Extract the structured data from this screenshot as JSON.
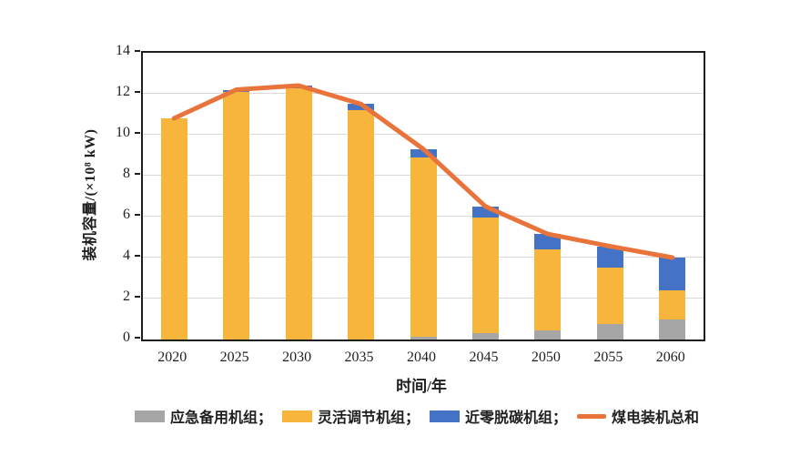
{
  "colors": {
    "emergency": "#a6a6a6",
    "flexible": "#f7b53c",
    "nearzero": "#4472c4",
    "total_line": "#e8743c",
    "grid": "#d9d9d9",
    "axis": "#1f1f1f"
  },
  "chart_data": {
    "type": "bar",
    "subtype": "stacked-bar-with-line",
    "categories": [
      "2020",
      "2025",
      "2030",
      "2035",
      "2040",
      "2045",
      "2050",
      "2055",
      "2060"
    ],
    "series": [
      {
        "name": "应急备用机组",
        "kind": "bar",
        "color_key": "emergency",
        "values": [
          0,
          0,
          0,
          0,
          0.15,
          0.3,
          0.45,
          0.75,
          1.0
        ]
      },
      {
        "name": "灵活调节机组",
        "kind": "bar",
        "color_key": "flexible",
        "values": [
          10.8,
          12.1,
          12.25,
          11.2,
          8.75,
          5.65,
          3.95,
          2.75,
          1.4
        ]
      },
      {
        "name": "近零脱碳机组",
        "kind": "bar",
        "color_key": "nearzero",
        "values": [
          0,
          0.1,
          0.15,
          0.3,
          0.4,
          0.55,
          0.75,
          1.05,
          1.6
        ]
      },
      {
        "name": "煤电装机总和",
        "kind": "line",
        "color_key": "total_line",
        "values": [
          10.8,
          12.2,
          12.4,
          11.5,
          9.3,
          6.5,
          5.15,
          4.55,
          4.0
        ]
      }
    ],
    "ylabel": "装机容量/(×10⁸ kW)",
    "xlabel": "时间/年",
    "ylim": [
      0,
      14
    ],
    "ytick_step": 2,
    "grid": true,
    "legend_position": "bottom"
  },
  "legend": {
    "items": [
      {
        "label": "应急备用机组；",
        "swatch": "bar",
        "color_key": "emergency"
      },
      {
        "label": "灵活调节机组；",
        "swatch": "bar",
        "color_key": "flexible"
      },
      {
        "label": "近零脱碳机组；",
        "swatch": "bar",
        "color_key": "nearzero"
      },
      {
        "label": "煤电装机总和",
        "swatch": "line",
        "color_key": "total_line"
      }
    ]
  }
}
